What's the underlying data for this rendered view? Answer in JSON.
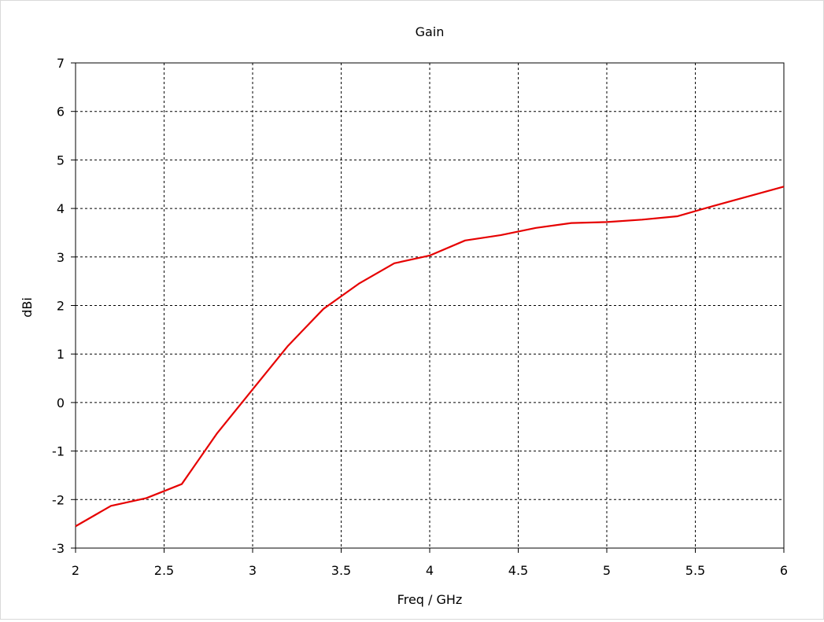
{
  "chart_data": {
    "type": "line",
    "title": "Gain",
    "xlabel": "Freq / GHz",
    "ylabel": "dBi",
    "xlim": [
      2,
      6
    ],
    "ylim": [
      -3,
      7
    ],
    "xticks": [
      "2",
      "2.5",
      "3",
      "3.5",
      "4",
      "4.5",
      "5",
      "5.5",
      "6"
    ],
    "yticks": [
      "-3",
      "-2",
      "-1",
      "0",
      "1",
      "2",
      "3",
      "4",
      "5",
      "6",
      "7"
    ],
    "grid": true,
    "series": [
      {
        "color": "#e60000",
        "x": [
          2.0,
          2.2,
          2.4,
          2.6,
          2.8,
          3.0,
          3.2,
          3.4,
          3.6,
          3.8,
          4.0,
          4.2,
          4.4,
          4.6,
          4.8,
          5.0,
          5.2,
          5.4,
          5.6,
          5.8,
          6.0
        ],
        "y": [
          -2.55,
          -2.13,
          -1.97,
          -1.68,
          -0.63,
          0.27,
          1.17,
          1.93,
          2.45,
          2.87,
          3.03,
          3.34,
          3.45,
          3.6,
          3.7,
          3.72,
          3.77,
          3.84,
          4.05,
          4.25,
          4.45
        ]
      }
    ]
  }
}
